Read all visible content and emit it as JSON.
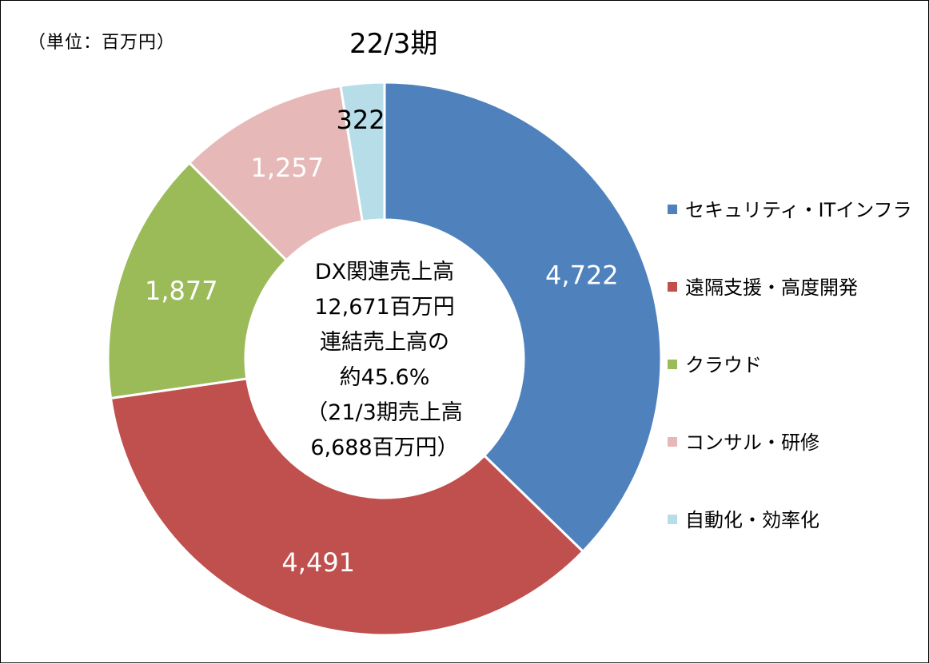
{
  "unit_note": "（単位：百万円）",
  "chart_data": {
    "type": "donut",
    "title": "22/3期",
    "categories": [
      "セキュリティ・ITインフラ",
      "遠隔支援・高度開発",
      "クラウド",
      "コンサル・研修",
      "自動化・効率化"
    ],
    "values": [
      4722,
      4491,
      1877,
      1257,
      322
    ],
    "value_labels": [
      "4,722",
      "4,491",
      "1,877",
      "1,257",
      "322"
    ],
    "colors": [
      "#4f81bd",
      "#c0504d",
      "#9bbb59",
      "#e6b9b8",
      "#b7dee8"
    ],
    "label_colors": [
      "#ffffff",
      "#ffffff",
      "#ffffff",
      "#ffffff",
      "#000000"
    ],
    "legend_position": "right",
    "center_text": [
      "DX関連売上高",
      "12,671百万円",
      "連結売上高の",
      "約45.6%",
      "（21/3期売上高",
      "6,688百万円）"
    ]
  }
}
